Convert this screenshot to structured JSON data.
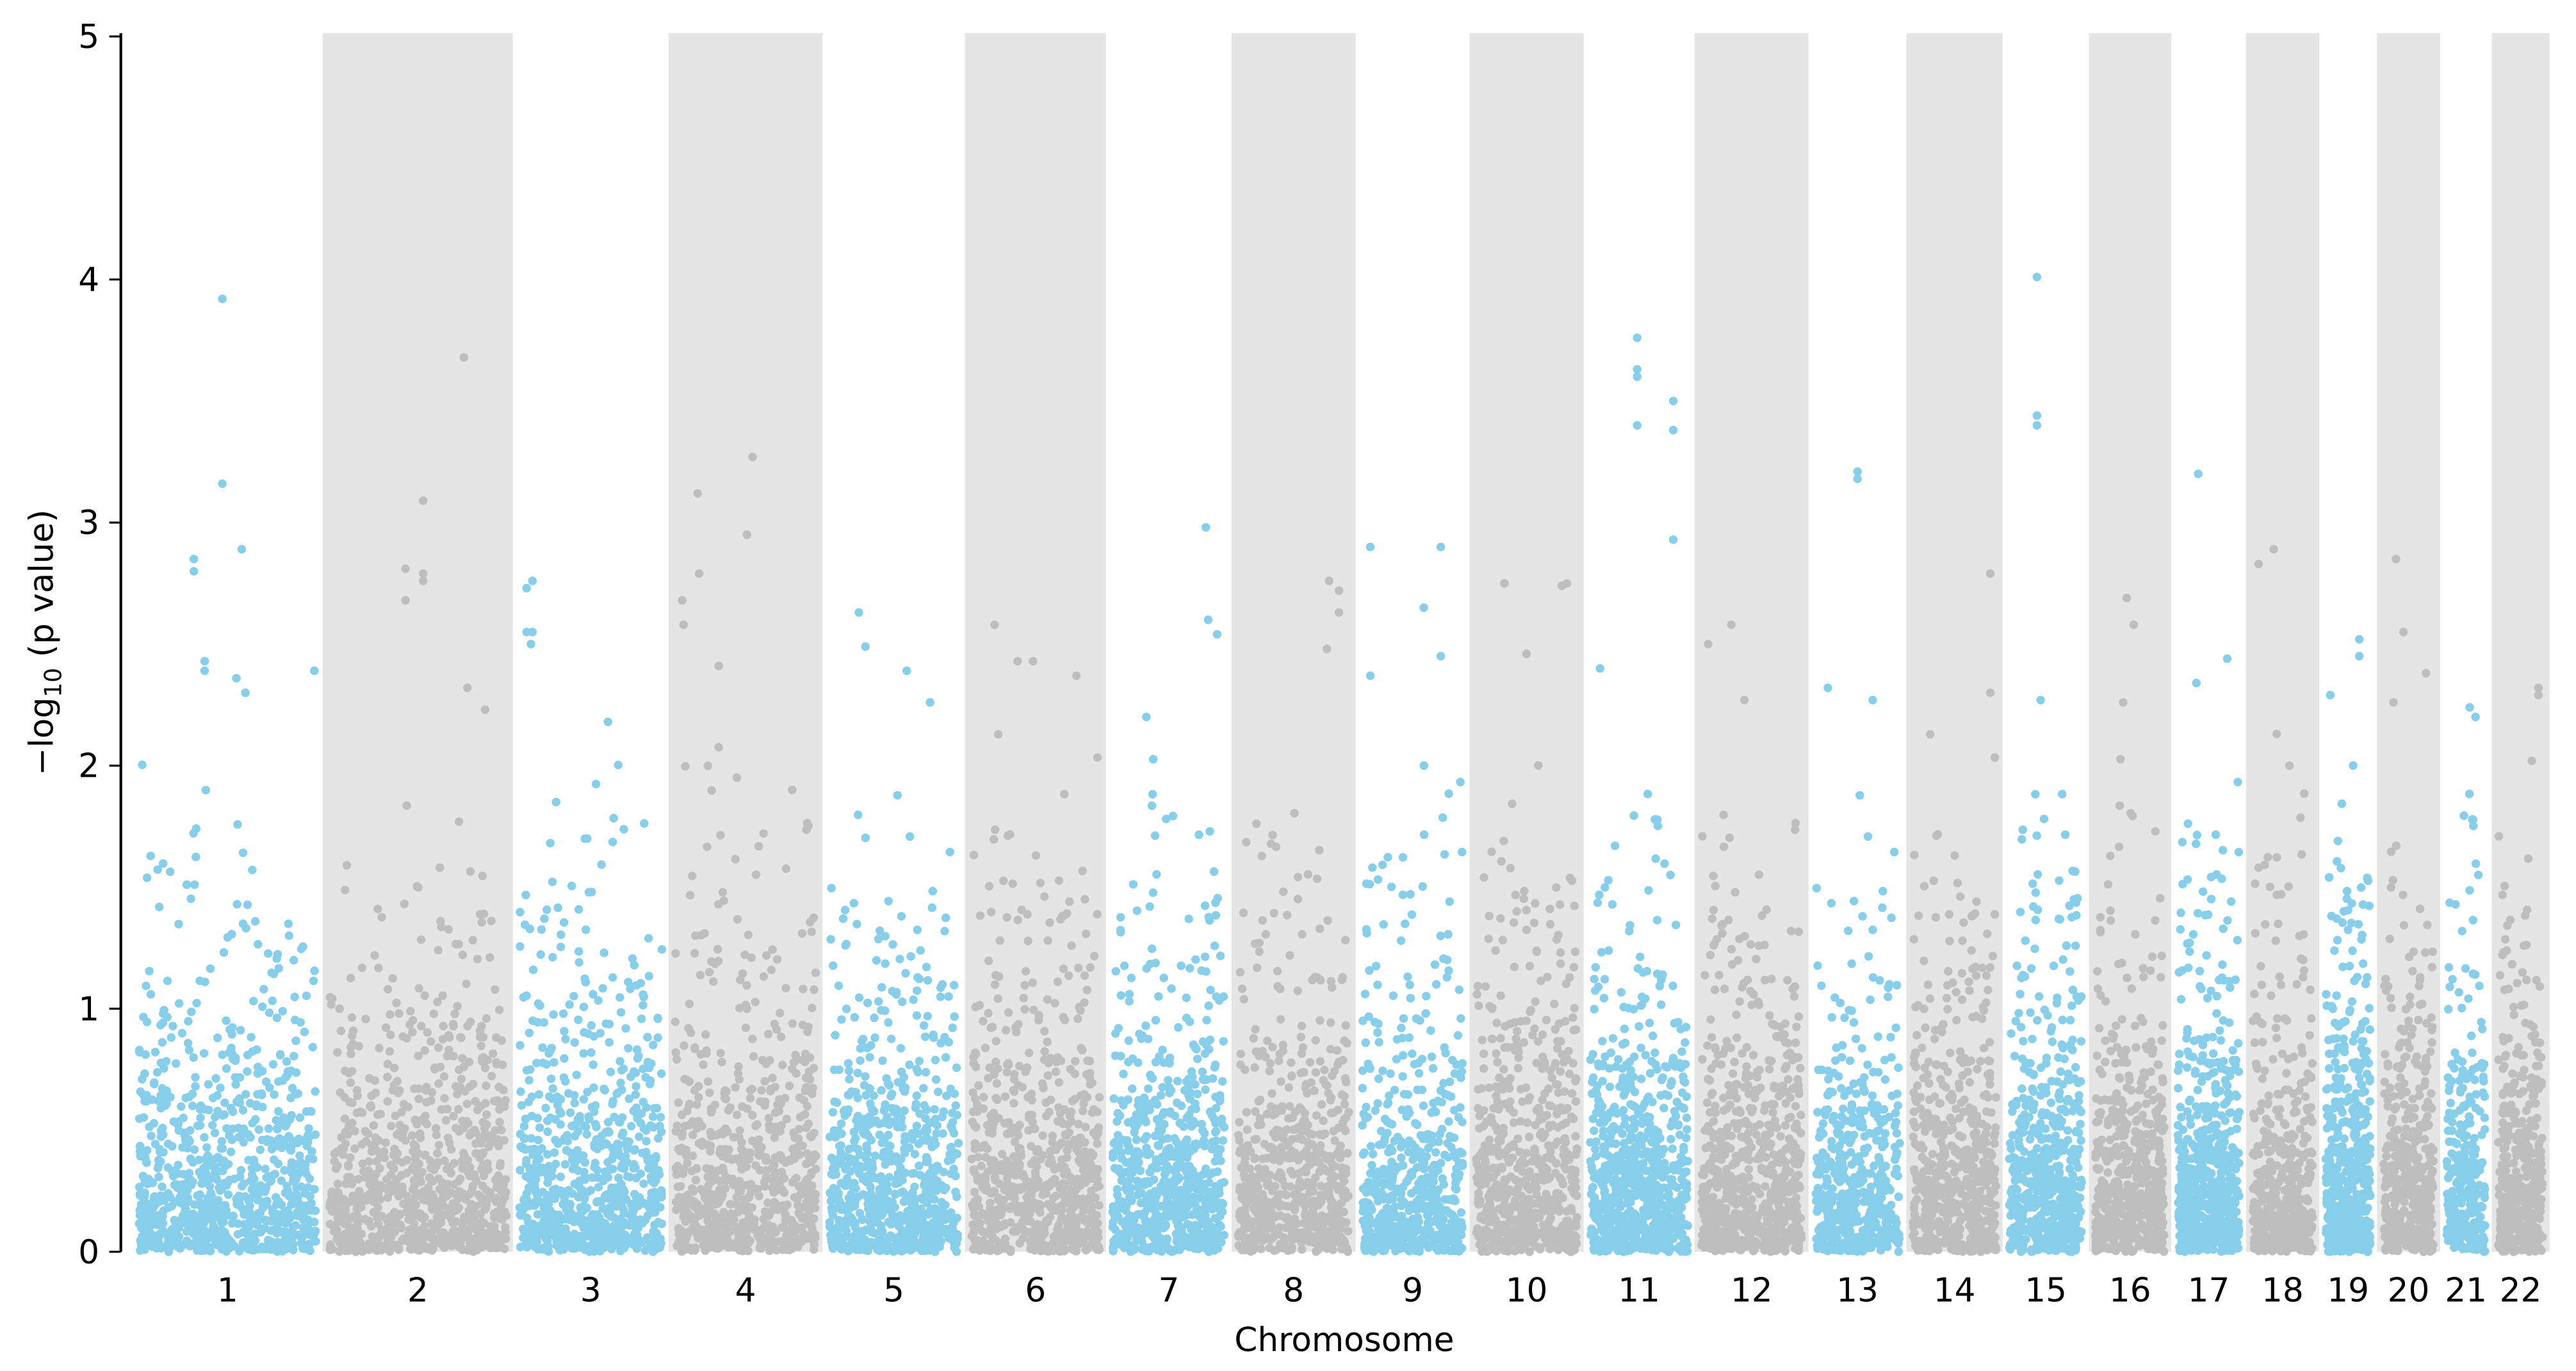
{
  "chart_data": {
    "type": "scatter",
    "subtype": "manhattan",
    "title": "",
    "xlabel": "Chromosome",
    "ylabel_parts": {
      "prefix": "−log",
      "sub": "10",
      "suffix": " (p value)"
    },
    "ylim": [
      0,
      5
    ],
    "yticks": [
      "0",
      "1",
      "2",
      "3",
      "4",
      "5"
    ],
    "colors": {
      "odd": "#87ceeb",
      "even": "#bebebe",
      "even_band": "#e5e5e5",
      "axis": "#000000"
    },
    "chromosomes": [
      {
        "label": "1",
        "length_mb": 247,
        "n_points": 900,
        "top_hits": [
          [
            0.47,
            3.92
          ],
          [
            0.47,
            3.16
          ],
          [
            0.31,
            2.85
          ],
          [
            0.31,
            2.8
          ],
          [
            0.58,
            2.89
          ],
          [
            0.37,
            2.43
          ],
          [
            0.37,
            2.39
          ],
          [
            0.55,
            2.36
          ],
          [
            0.99,
            2.39
          ],
          [
            0.6,
            2.3
          ]
        ]
      },
      {
        "label": "2",
        "length_mb": 247,
        "n_points": 820,
        "top_hits": [
          [
            0.76,
            3.68
          ],
          [
            0.53,
            3.09
          ],
          [
            0.43,
            2.81
          ],
          [
            0.53,
            2.79
          ],
          [
            0.53,
            2.76
          ],
          [
            0.43,
            2.68
          ],
          [
            0.78,
            2.32
          ],
          [
            0.88,
            2.23
          ]
        ]
      },
      {
        "label": "3",
        "length_mb": 202,
        "n_points": 760,
        "top_hits": [
          [
            0.05,
            2.73
          ],
          [
            0.09,
            2.76
          ],
          [
            0.05,
            2.55
          ],
          [
            0.09,
            2.55
          ],
          [
            0.08,
            2.5
          ],
          [
            0.62,
            2.18
          ]
        ]
      },
      {
        "label": "4",
        "length_mb": 200,
        "n_points": 680,
        "top_hits": [
          [
            0.55,
            3.27
          ],
          [
            0.16,
            3.12
          ],
          [
            0.51,
            2.95
          ],
          [
            0.17,
            2.79
          ],
          [
            0.05,
            2.68
          ],
          [
            0.06,
            2.58
          ],
          [
            0.31,
            2.41
          ]
        ]
      },
      {
        "label": "5",
        "length_mb": 185,
        "n_points": 760,
        "top_hits": [
          [
            0.23,
            2.63
          ],
          [
            0.28,
            2.49
          ],
          [
            0.6,
            2.39
          ],
          [
            0.78,
            2.26
          ]
        ]
      },
      {
        "label": "6",
        "length_mb": 183,
        "n_points": 700,
        "top_hits": [
          [
            0.18,
            2.58
          ],
          [
            0.36,
            2.43
          ],
          [
            0.48,
            2.43
          ],
          [
            0.82,
            2.37
          ]
        ]
      },
      {
        "label": "7",
        "length_mb": 163,
        "n_points": 700,
        "top_hits": [
          [
            0.83,
            2.98
          ],
          [
            0.85,
            2.6
          ],
          [
            0.93,
            2.54
          ],
          [
            0.3,
            2.2
          ]
        ]
      },
      {
        "label": "8",
        "length_mb": 161,
        "n_points": 620,
        "top_hits": [
          [
            0.82,
            2.76
          ],
          [
            0.91,
            2.72
          ],
          [
            0.91,
            2.63
          ],
          [
            0.8,
            2.48
          ]
        ]
      },
      {
        "label": "9",
        "length_mb": 148,
        "n_points": 560,
        "top_hits": [
          [
            0.08,
            2.9
          ],
          [
            0.78,
            2.9
          ],
          [
            0.61,
            2.65
          ],
          [
            0.78,
            2.45
          ],
          [
            0.08,
            2.37
          ]
        ]
      },
      {
        "label": "10",
        "length_mb": 148,
        "n_points": 640,
        "top_hits": [
          [
            0.28,
            2.75
          ],
          [
            0.85,
            2.74
          ],
          [
            0.9,
            2.75
          ],
          [
            0.5,
            2.46
          ]
        ]
      },
      {
        "label": "11",
        "length_mb": 144,
        "n_points": 760,
        "top_hits": [
          [
            0.48,
            3.76
          ],
          [
            0.48,
            3.63
          ],
          [
            0.48,
            3.6
          ],
          [
            0.85,
            3.5
          ],
          [
            0.48,
            3.4
          ],
          [
            0.85,
            3.38
          ],
          [
            0.85,
            2.93
          ],
          [
            0.1,
            2.4
          ]
        ]
      },
      {
        "label": "12",
        "length_mb": 148,
        "n_points": 680,
        "top_hits": [
          [
            0.07,
            2.5
          ],
          [
            0.3,
            2.58
          ],
          [
            0.43,
            2.27
          ]
        ]
      },
      {
        "label": "13",
        "length_mb": 127,
        "n_points": 480,
        "top_hits": [
          [
            0.5,
            3.21
          ],
          [
            0.5,
            3.18
          ],
          [
            0.15,
            2.32
          ],
          [
            0.68,
            2.27
          ]
        ]
      },
      {
        "label": "14",
        "length_mb": 125,
        "n_points": 560,
        "top_hits": [
          [
            0.93,
            2.79
          ],
          [
            0.93,
            2.3
          ]
        ]
      },
      {
        "label": "15",
        "length_mb": 112,
        "n_points": 560,
        "top_hits": [
          [
            0.38,
            4.01
          ],
          [
            0.38,
            3.44
          ],
          [
            0.38,
            3.4
          ],
          [
            0.43,
            2.27
          ]
        ]
      },
      {
        "label": "16",
        "length_mb": 107,
        "n_points": 520,
        "top_hits": [
          [
            0.45,
            2.69
          ],
          [
            0.55,
            2.58
          ],
          [
            0.4,
            2.26
          ]
        ]
      },
      {
        "label": "17",
        "length_mb": 97,
        "n_points": 600,
        "top_hits": [
          [
            0.33,
            3.2
          ],
          [
            0.8,
            2.44
          ],
          [
            0.3,
            2.34
          ]
        ]
      },
      {
        "label": "18",
        "length_mb": 95,
        "n_points": 420,
        "top_hits": [
          [
            0.35,
            2.89
          ],
          [
            0.1,
            2.83
          ],
          [
            0.4,
            2.13
          ]
        ]
      },
      {
        "label": "19",
        "length_mb": 75,
        "n_points": 520,
        "top_hits": [
          [
            0.75,
            2.52
          ],
          [
            0.75,
            2.45
          ],
          [
            0.1,
            2.29
          ]
        ]
      },
      {
        "label": "20",
        "length_mb": 82,
        "n_points": 420,
        "top_hits": [
          [
            0.25,
            2.85
          ],
          [
            0.4,
            2.55
          ],
          [
            0.85,
            2.38
          ],
          [
            0.2,
            2.26
          ]
        ]
      },
      {
        "label": "21",
        "length_mb": 67,
        "n_points": 300,
        "top_hits": [
          [
            0.6,
            2.24
          ],
          [
            0.75,
            2.2
          ]
        ]
      },
      {
        "label": "22",
        "length_mb": 75,
        "n_points": 420,
        "top_hits": [
          [
            0.9,
            2.32
          ],
          [
            0.9,
            2.29
          ],
          [
            0.75,
            2.02
          ]
        ]
      }
    ]
  }
}
